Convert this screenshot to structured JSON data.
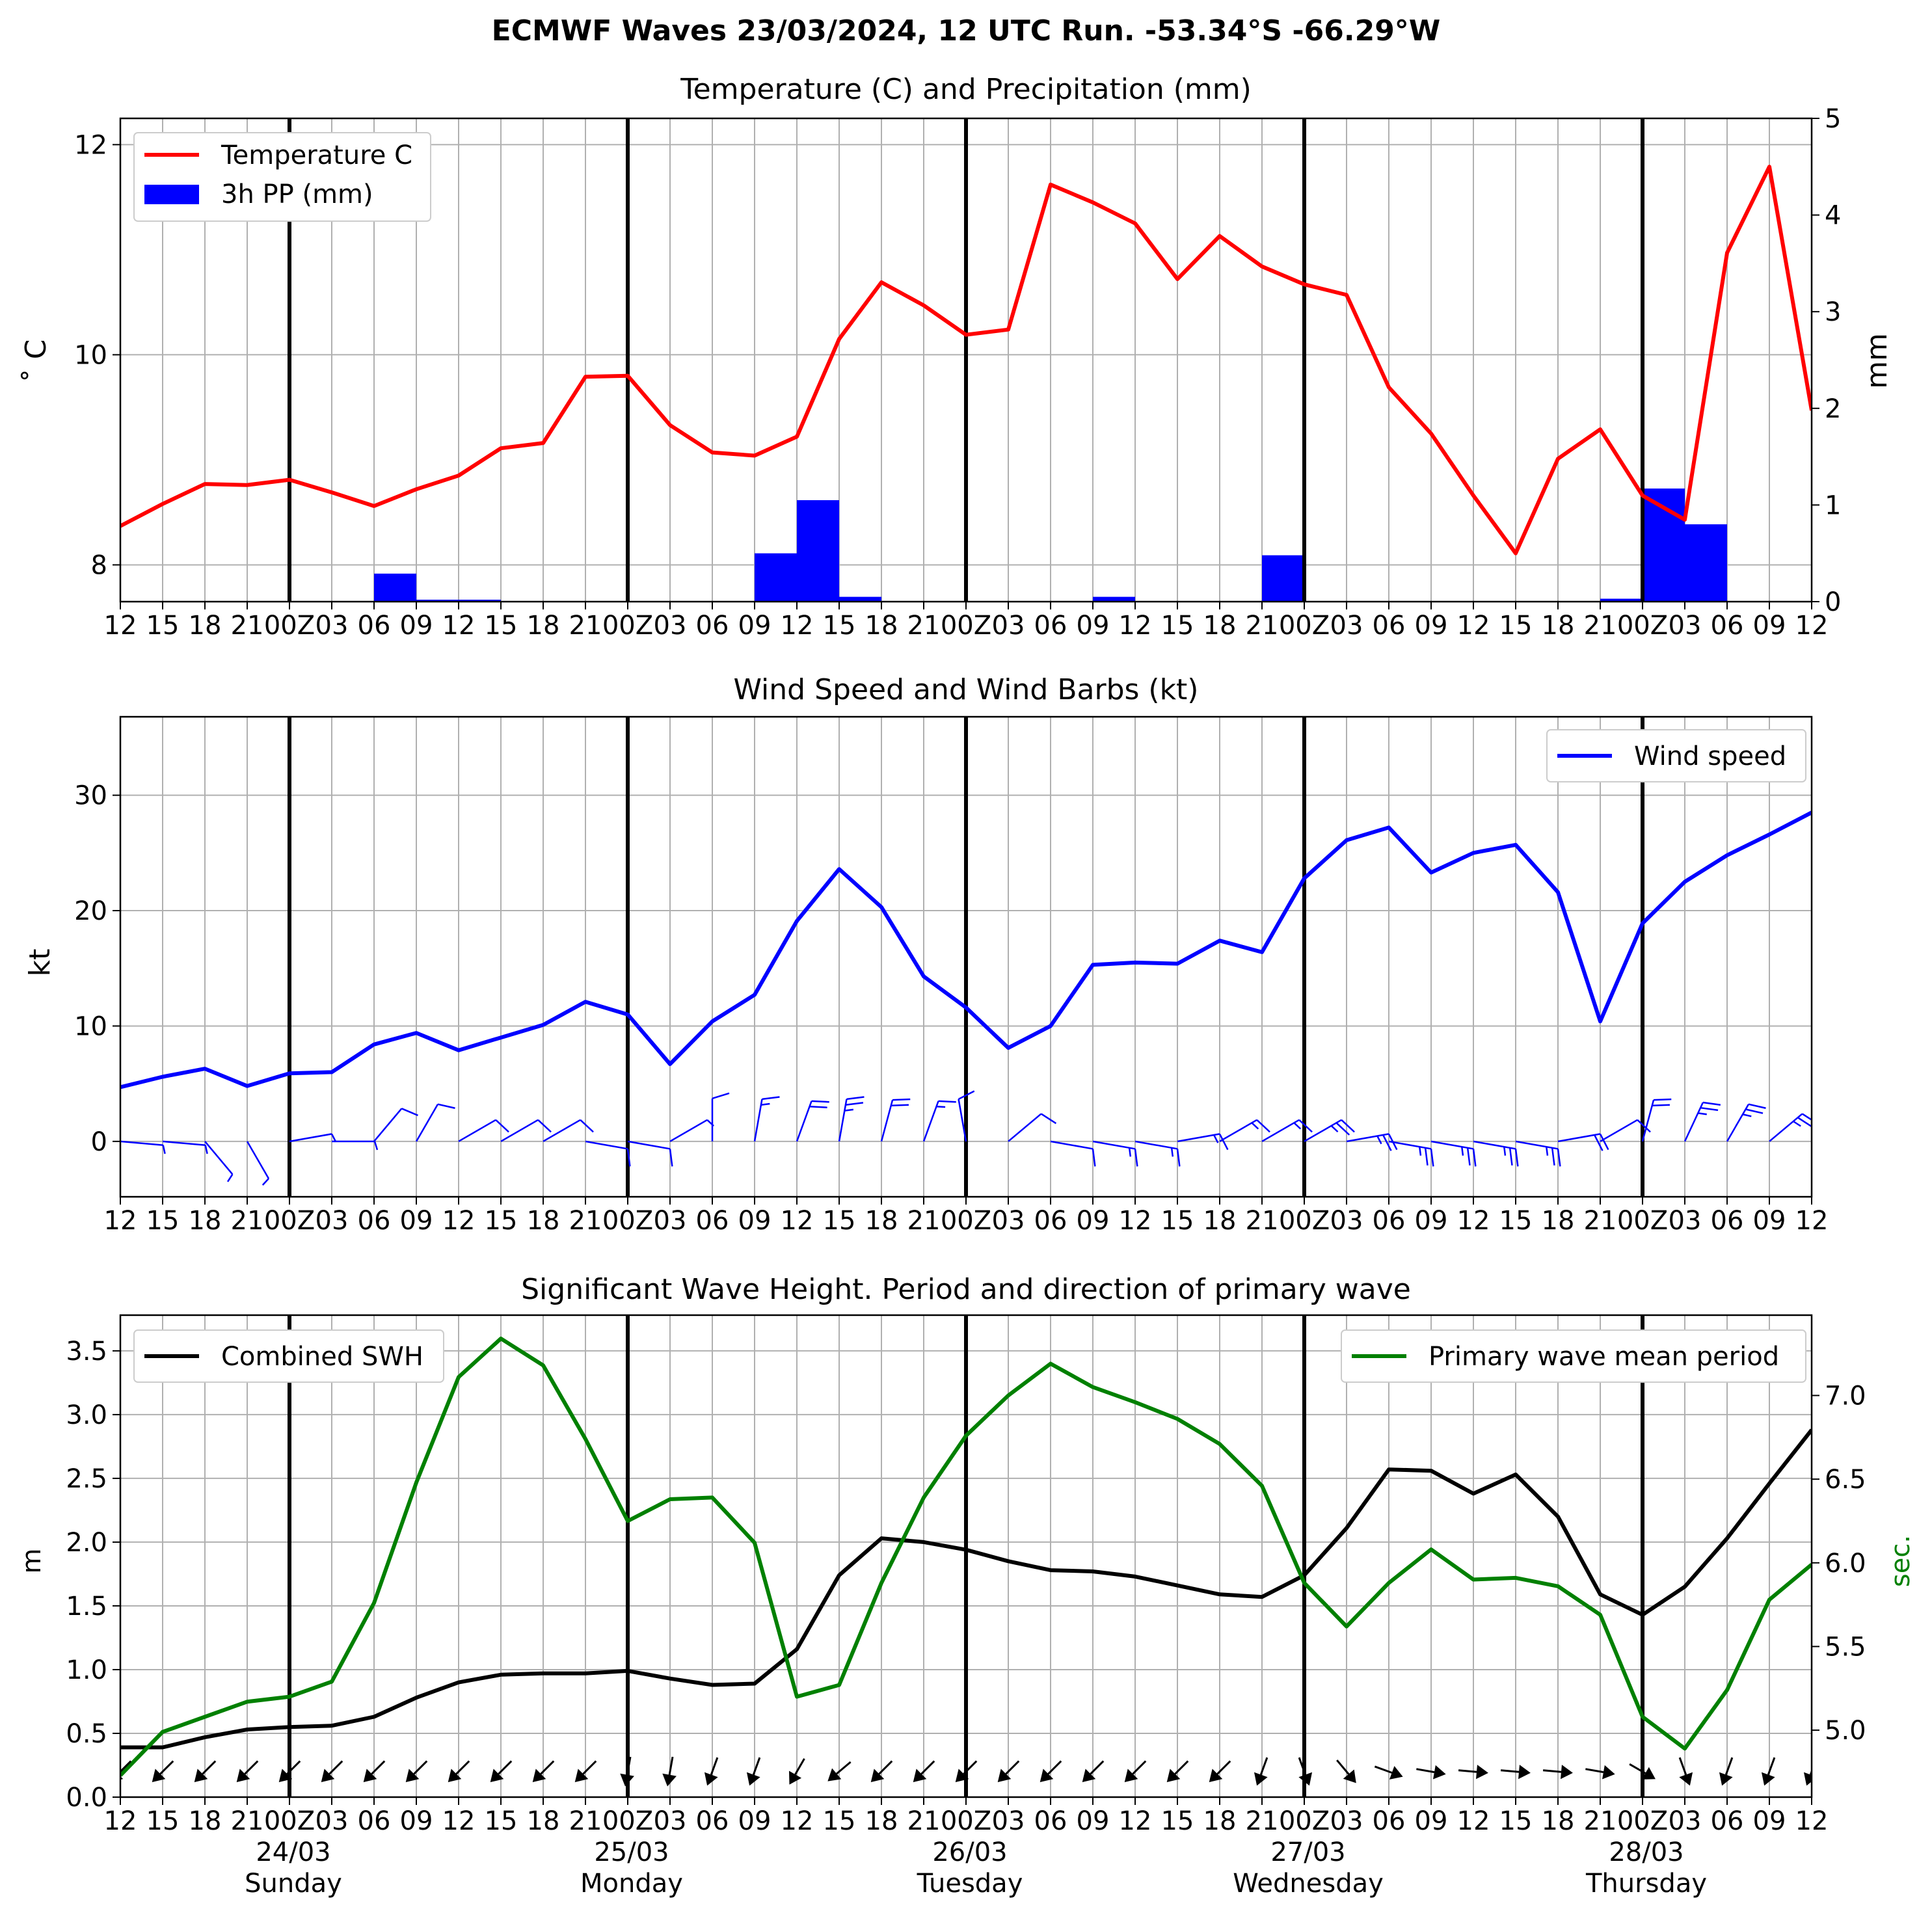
{
  "figure_title": "ECMWF Waves 23/03/2024, 12 UTC Run. -53.34°S -66.29°W",
  "colors": {
    "temperature": "#ff0000",
    "precipitation": "#0000ff",
    "wind": "#0000ff",
    "swh": "#000000",
    "period": "#008000",
    "grid": "#b0b0b0",
    "day_line": "#000000"
  },
  "time_axis": {
    "tick_labels": [
      "12",
      "15",
      "18",
      "21",
      "00Z",
      "03",
      "06",
      "09",
      "12",
      "15",
      "18",
      "21",
      "00Z",
      "03",
      "06",
      "09",
      "12",
      "15",
      "18",
      "21",
      "00Z",
      "03",
      "06",
      "09",
      "12",
      "15",
      "18",
      "21",
      "00Z",
      "03",
      "06",
      "09",
      "12",
      "15",
      "18",
      "21",
      "00Z",
      "03",
      "06",
      "09",
      "12"
    ],
    "day_dates": [
      "24/03",
      "25/03",
      "26/03",
      "27/03",
      "28/03"
    ],
    "day_names": [
      "Sunday",
      "Monday",
      "Tuesday",
      "Wednesday",
      "Thursday"
    ]
  },
  "chart_data": [
    {
      "type": "line",
      "title": "Temperature (C) and Precipitation (mm)",
      "ylabel": "$^\\circ$C",
      "ylabel_display": "˚ C",
      "y2label": "mm",
      "ylim": [
        7.65,
        12.25
      ],
      "y2lim": [
        0,
        5
      ],
      "yticks": [
        8,
        10,
        12
      ],
      "y2ticks": [
        0,
        1,
        2,
        3,
        4,
        5
      ],
      "legend": {
        "position": "upper-left",
        "entries": [
          "Temperature C",
          "3h PP (mm)"
        ]
      },
      "grid": true,
      "series": [
        {
          "name": "Temperature C",
          "kind": "line",
          "values": [
            8.37,
            8.58,
            8.77,
            8.76,
            8.81,
            8.69,
            8.56,
            8.72,
            8.85,
            9.11,
            9.16,
            9.79,
            9.8,
            9.33,
            9.07,
            9.04,
            9.22,
            10.15,
            10.69,
            10.47,
            10.19,
            10.24,
            11.62,
            11.45,
            11.25,
            10.72,
            11.13,
            10.84,
            10.67,
            10.57,
            9.69,
            9.25,
            8.66,
            8.11,
            9.01,
            9.29,
            8.66,
            8.43,
            10.97,
            11.79,
            9.47
          ]
        },
        {
          "name": "3h PP (mm)",
          "kind": "bar",
          "values": [
            0,
            0,
            0,
            0,
            0,
            0,
            0.29,
            0.02,
            0.02,
            0,
            0,
            0,
            0,
            0,
            0,
            0.5,
            1.05,
            0.05,
            0,
            0,
            0,
            0,
            0,
            0.05,
            0,
            0,
            0,
            0.48,
            0,
            0,
            0,
            0,
            0,
            0,
            0,
            0.03,
            1.17,
            0.8,
            0,
            0
          ]
        }
      ]
    },
    {
      "type": "line",
      "title": "Wind Speed and Wind Barbs (kt)",
      "ylabel": "kt",
      "ylim": [
        -4.8,
        36.8
      ],
      "yticks": [
        0,
        10,
        20,
        30
      ],
      "legend": {
        "position": "upper-right",
        "entries": [
          "Wind speed"
        ]
      },
      "grid": true,
      "series": [
        {
          "name": "Wind speed",
          "kind": "line",
          "values": [
            4.7,
            5.6,
            6.3,
            4.8,
            5.9,
            6.0,
            8.4,
            9.4,
            7.9,
            9.0,
            10.1,
            12.1,
            11.0,
            6.7,
            10.4,
            12.7,
            19.1,
            23.6,
            20.3,
            14.3,
            11.6,
            8.1,
            10.0,
            15.3,
            15.5,
            15.4,
            17.4,
            16.4,
            22.8,
            26.1,
            27.2,
            23.3,
            25.0,
            25.7,
            21.6,
            10.4,
            18.9,
            22.5,
            24.8,
            26.6,
            28.5
          ]
        },
        {
          "name": "Wind barbs",
          "kind": "barbs",
          "direction_deg_to": [
            95,
            95,
            140,
            150,
            80,
            90,
            40,
            30,
            60,
            60,
            60,
            100,
            100,
            60,
            0,
            10,
            20,
            10,
            15,
            20,
            350,
            50,
            100,
            100,
            100,
            80,
            60,
            60,
            60,
            80,
            100,
            100,
            100,
            100,
            80,
            60,
            15,
            25,
            30,
            50,
            60
          ]
        }
      ]
    },
    {
      "type": "line",
      "title": "Significant Wave Height. Period and direction of primary wave",
      "ylabel": "m",
      "y2label": "sec.",
      "ylim": [
        0,
        3.78
      ],
      "y2lim": [
        4.6,
        7.48
      ],
      "yticks": [
        0.0,
        0.5,
        1.0,
        1.5,
        2.0,
        2.5,
        3.0,
        3.5
      ],
      "y2ticks": [
        5.0,
        5.5,
        6.0,
        6.5,
        7.0
      ],
      "legend": {
        "left": "Combined SWH",
        "right": "Primary wave mean period"
      },
      "grid": true,
      "series": [
        {
          "name": "Combined SWH",
          "kind": "line",
          "axis": "left",
          "values": [
            0.39,
            0.39,
            0.47,
            0.53,
            0.55,
            0.56,
            0.63,
            0.78,
            0.9,
            0.96,
            0.97,
            0.97,
            0.99,
            0.93,
            0.88,
            0.89,
            1.16,
            1.74,
            2.03,
            2.0,
            1.94,
            1.85,
            1.78,
            1.77,
            1.73,
            1.66,
            1.59,
            1.57,
            1.74,
            2.11,
            2.57,
            2.56,
            2.38,
            2.53,
            2.2,
            1.59,
            1.43,
            1.65,
            2.03,
            2.46,
            2.88
          ]
        },
        {
          "name": "Primary wave mean period",
          "kind": "line",
          "axis": "right",
          "values": [
            4.73,
            4.99,
            5.08,
            5.17,
            5.2,
            5.29,
            5.76,
            6.48,
            7.11,
            7.34,
            7.18,
            6.74,
            6.25,
            6.38,
            6.39,
            6.12,
            5.2,
            5.27,
            5.88,
            6.39,
            6.76,
            7.0,
            7.19,
            7.05,
            6.96,
            6.86,
            6.71,
            6.46,
            5.88,
            5.62,
            5.88,
            6.08,
            5.9,
            5.91,
            5.86,
            5.69,
            5.08,
            4.89,
            5.24,
            5.78,
            5.99
          ]
        },
        {
          "name": "Primary wave direction",
          "kind": "arrows",
          "direction_deg_to": [
            225,
            225,
            225,
            225,
            225,
            225,
            225,
            225,
            225,
            225,
            225,
            225,
            190,
            190,
            200,
            200,
            210,
            230,
            225,
            225,
            225,
            225,
            225,
            225,
            225,
            225,
            225,
            200,
            160,
            140,
            110,
            100,
            95,
            95,
            95,
            100,
            120,
            160,
            200,
            200,
            200
          ]
        }
      ]
    }
  ]
}
